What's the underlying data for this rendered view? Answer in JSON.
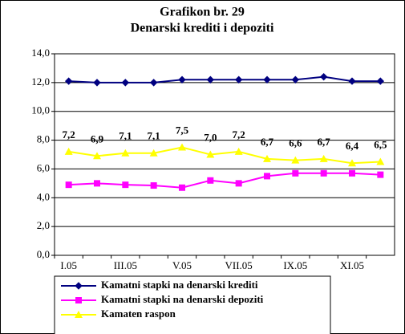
{
  "chart_data": {
    "type": "line",
    "title": "Grafikon br. 29",
    "subtitle": "Denarski krediti i depoziti",
    "categories": [
      "I.05",
      null,
      "III.05",
      null,
      "V.05",
      null,
      "VII.05",
      null,
      "IX.05",
      null,
      "XI.05",
      null
    ],
    "series": [
      {
        "name": "Kamatni stapki na denarski krediti",
        "color": "#000080",
        "marker": "diamond",
        "values": [
          12.1,
          12.0,
          12.0,
          12.0,
          12.2,
          12.2,
          12.2,
          12.2,
          12.2,
          12.4,
          12.1,
          12.1
        ]
      },
      {
        "name": "Kamatni stapki na denarski depoziti",
        "color": "#ff00ff",
        "marker": "square",
        "values": [
          4.9,
          5.0,
          4.9,
          4.85,
          4.7,
          5.2,
          5.0,
          5.5,
          5.7,
          5.7,
          5.7,
          5.6
        ]
      },
      {
        "name": "Kamaten raspon",
        "color": "#ffff00",
        "marker": "triangle",
        "values": [
          7.2,
          6.9,
          7.1,
          7.1,
          7.5,
          7.0,
          7.2,
          6.7,
          6.6,
          6.7,
          6.4,
          6.5
        ],
        "value_labels": [
          "7,2",
          "6,9",
          "7,1",
          "7,1",
          "7,5",
          "7,0",
          "7,2",
          "6,7",
          "6,6",
          "6,7",
          "6,4",
          "6,5"
        ]
      }
    ],
    "ylim": [
      0,
      14
    ],
    "yticks": [
      {
        "value": 0,
        "label": "0,0"
      },
      {
        "value": 2,
        "label": "2,0"
      },
      {
        "value": 4,
        "label": "4,0"
      },
      {
        "value": 6,
        "label": "6,0"
      },
      {
        "value": 8,
        "label": "8,0"
      },
      {
        "value": 10,
        "label": "10,0"
      },
      {
        "value": 12,
        "label": "12,0"
      },
      {
        "value": 14,
        "label": "14,0"
      }
    ],
    "grid": true
  }
}
